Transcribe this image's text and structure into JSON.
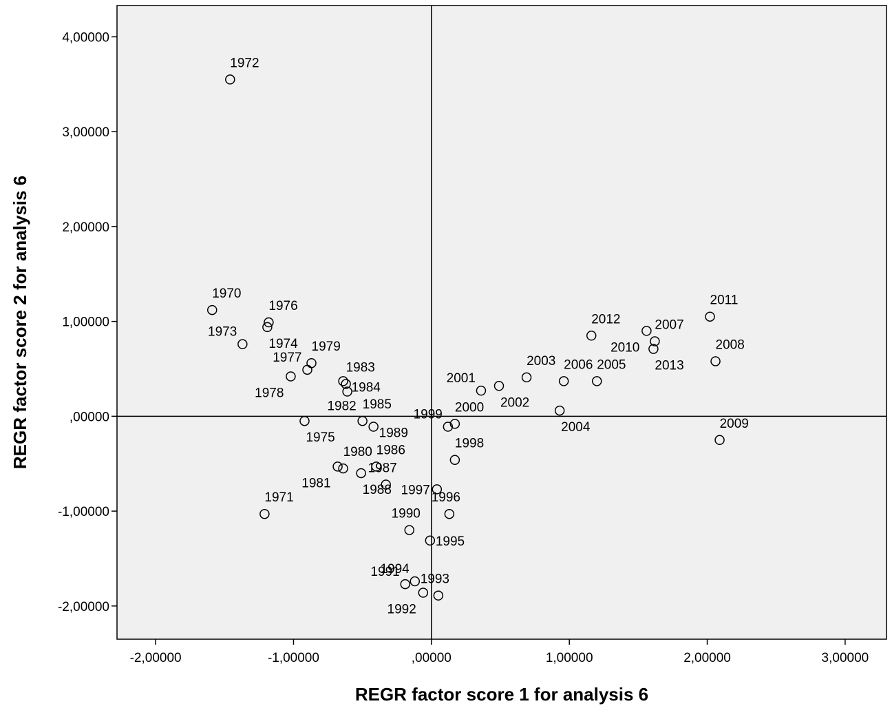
{
  "chart_data": {
    "type": "scatter",
    "title": "",
    "xlabel": "REGR factor score   1 for analysis 6",
    "ylabel": "REGR factor score   2 for analysis 6",
    "xlim": [
      -2.28,
      3.3
    ],
    "ylim": [
      -2.35,
      4.33
    ],
    "x_ticks": [
      -2,
      -1,
      0,
      1,
      2,
      3
    ],
    "x_tick_labels": [
      "-2,00000",
      "-1,00000",
      ",00000",
      "1,00000",
      "2,00000",
      "3,00000"
    ],
    "y_ticks": [
      -2,
      -1,
      0,
      1,
      2,
      3,
      4
    ],
    "y_tick_labels": [
      "-2,00000",
      "-1,00000",
      ",00000",
      "1,00000",
      "2,00000",
      "3,00000",
      "4,00000"
    ],
    "reference_lines": {
      "x": 0,
      "y": 0
    },
    "grid": false,
    "background": "#f0f0f0",
    "marker": "open-circle",
    "points": [
      {
        "label": "1970",
        "x": -1.59,
        "y": 1.12,
        "lp": "ab"
      },
      {
        "label": "1971",
        "x": -1.21,
        "y": -1.03,
        "lp": "ar"
      },
      {
        "label": "1972",
        "x": -1.46,
        "y": 3.55,
        "lp": "ar"
      },
      {
        "label": "1973",
        "x": -1.37,
        "y": 0.76,
        "lp": "ul"
      },
      {
        "label": "1974",
        "x": -1.19,
        "y": 0.94,
        "lp": "br"
      },
      {
        "label": "1975",
        "x": -0.92,
        "y": -0.05,
        "lp": "br"
      },
      {
        "label": "1976",
        "x": -1.18,
        "y": 0.99,
        "lp": "ar"
      },
      {
        "label": "1977",
        "x": -0.9,
        "y": 0.49,
        "lp": "ul"
      },
      {
        "label": "1978",
        "x": -1.02,
        "y": 0.42,
        "lp": "bl"
      },
      {
        "label": "1979",
        "x": -0.87,
        "y": 0.56,
        "lp": "ar"
      },
      {
        "label": "1980",
        "x": -0.64,
        "y": -0.55,
        "lp": "ar"
      },
      {
        "label": "1981",
        "x": -0.68,
        "y": -0.53,
        "lp": "bl"
      },
      {
        "label": "1982",
        "x": -0.64,
        "y": 0.37,
        "lp": "blb"
      },
      {
        "label": "1983",
        "x": -0.62,
        "y": 0.34,
        "lp": "ar"
      },
      {
        "label": "1984",
        "x": -0.61,
        "y": 0.26,
        "lp": "rt"
      },
      {
        "label": "1985",
        "x": -0.5,
        "y": -0.05,
        "lp": "ar"
      },
      {
        "label": "1986",
        "x": -0.4,
        "y": -0.53,
        "lp": "ar"
      },
      {
        "label": "1987",
        "x": -0.33,
        "y": -0.72,
        "lp": "ur"
      },
      {
        "label": "1988",
        "x": -0.51,
        "y": -0.6,
        "lp": "br"
      },
      {
        "label": "1989",
        "x": -0.42,
        "y": -0.11,
        "lp": "rb"
      },
      {
        "label": "1990",
        "x": -0.16,
        "y": -1.2,
        "lp": "ur"
      },
      {
        "label": "1991",
        "x": -0.19,
        "y": -1.77,
        "lp": "ul"
      },
      {
        "label": "1992",
        "x": -0.06,
        "y": -1.86,
        "lp": "bl"
      },
      {
        "label": "1993",
        "x": 0.05,
        "y": -1.89,
        "lp": "ur"
      },
      {
        "label": "1994",
        "x": -0.12,
        "y": -1.74,
        "lp": "ul"
      },
      {
        "label": "1995",
        "x": -0.01,
        "y": -1.31,
        "lp": "r"
      },
      {
        "label": "1996",
        "x": 0.13,
        "y": -1.03,
        "lp": "ur"
      },
      {
        "label": "1997",
        "x": 0.04,
        "y": -0.77,
        "lp": "l"
      },
      {
        "label": "1998",
        "x": 0.17,
        "y": -0.46,
        "lp": "ar"
      },
      {
        "label": "1999",
        "x": 0.12,
        "y": -0.11,
        "lp": "ul"
      },
      {
        "label": "2000",
        "x": 0.17,
        "y": -0.08,
        "lp": "ar"
      },
      {
        "label": "2001",
        "x": 0.36,
        "y": 0.27,
        "lp": "ul"
      },
      {
        "label": "2002",
        "x": 0.49,
        "y": 0.32,
        "lp": "br"
      },
      {
        "label": "2003",
        "x": 0.69,
        "y": 0.41,
        "lp": "ar"
      },
      {
        "label": "2004",
        "x": 0.93,
        "y": 0.06,
        "lp": "br"
      },
      {
        "label": "2005",
        "x": 1.2,
        "y": 0.37,
        "lp": "ar"
      },
      {
        "label": "2006",
        "x": 0.96,
        "y": 0.37,
        "lp": "ar"
      },
      {
        "label": "2007",
        "x": 1.62,
        "y": 0.79,
        "lp": "ar"
      },
      {
        "label": "2008",
        "x": 2.06,
        "y": 0.58,
        "lp": "ar"
      },
      {
        "label": "2009",
        "x": 2.09,
        "y": -0.25,
        "lp": "ar"
      },
      {
        "label": "2010",
        "x": 1.56,
        "y": 0.9,
        "lp": "bl"
      },
      {
        "label": "2011",
        "x": 2.02,
        "y": 1.05,
        "lp": "ar"
      },
      {
        "label": "2012",
        "x": 1.16,
        "y": 0.85,
        "lp": "ar"
      },
      {
        "label": "2013",
        "x": 1.61,
        "y": 0.71,
        "lp": "br"
      }
    ]
  }
}
